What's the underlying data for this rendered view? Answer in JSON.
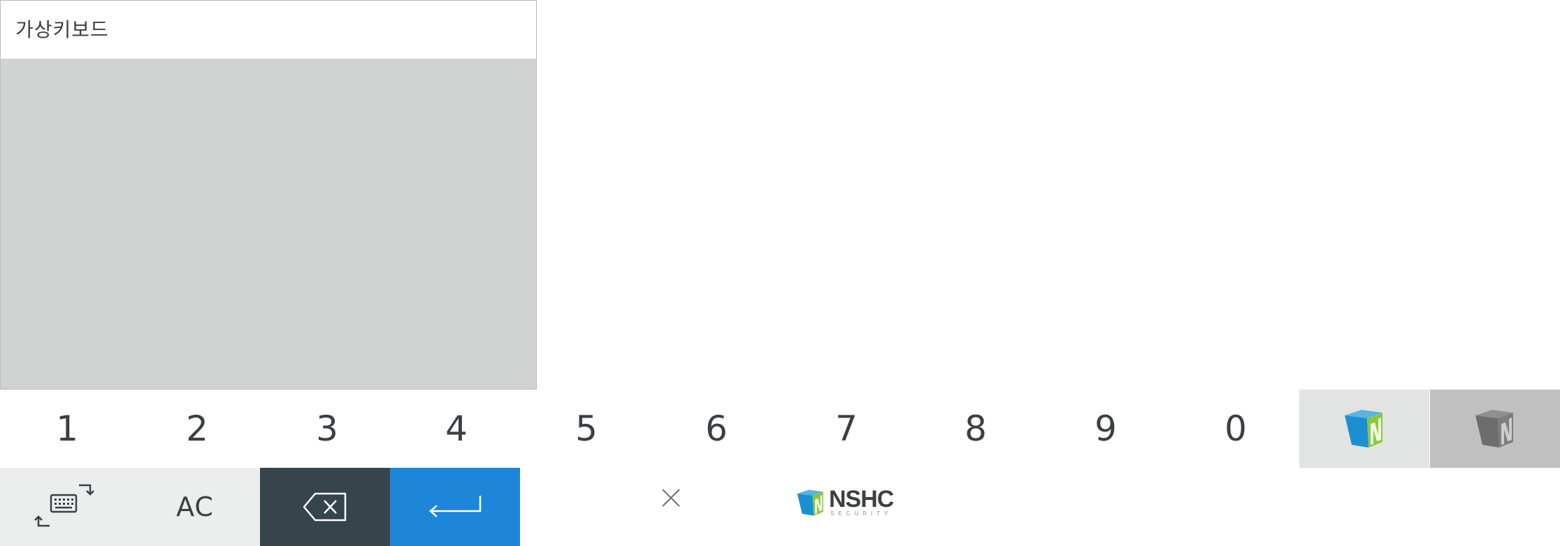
{
  "panel": {
    "title": "가상키보드"
  },
  "keypad": {
    "number_keys": [
      "1",
      "2",
      "3",
      "4",
      "5",
      "6",
      "7",
      "8",
      "9",
      "0"
    ],
    "clear_label": "AC",
    "keyboard_switch_icon": "keyboard-switch-icon",
    "backspace_icon": "backspace-icon",
    "enter_icon": "enter-icon",
    "close_icon": "close-icon"
  },
  "brand": {
    "name": "NSHC",
    "sub": "SECURITY"
  },
  "colors": {
    "panel_bg": "#d1d3d2",
    "light_key": "#eceeed",
    "dark_key": "#36444c",
    "enter_key": "#1e86d9",
    "logo_blue": "#1a8fd1",
    "logo_green": "#8cc63f"
  }
}
